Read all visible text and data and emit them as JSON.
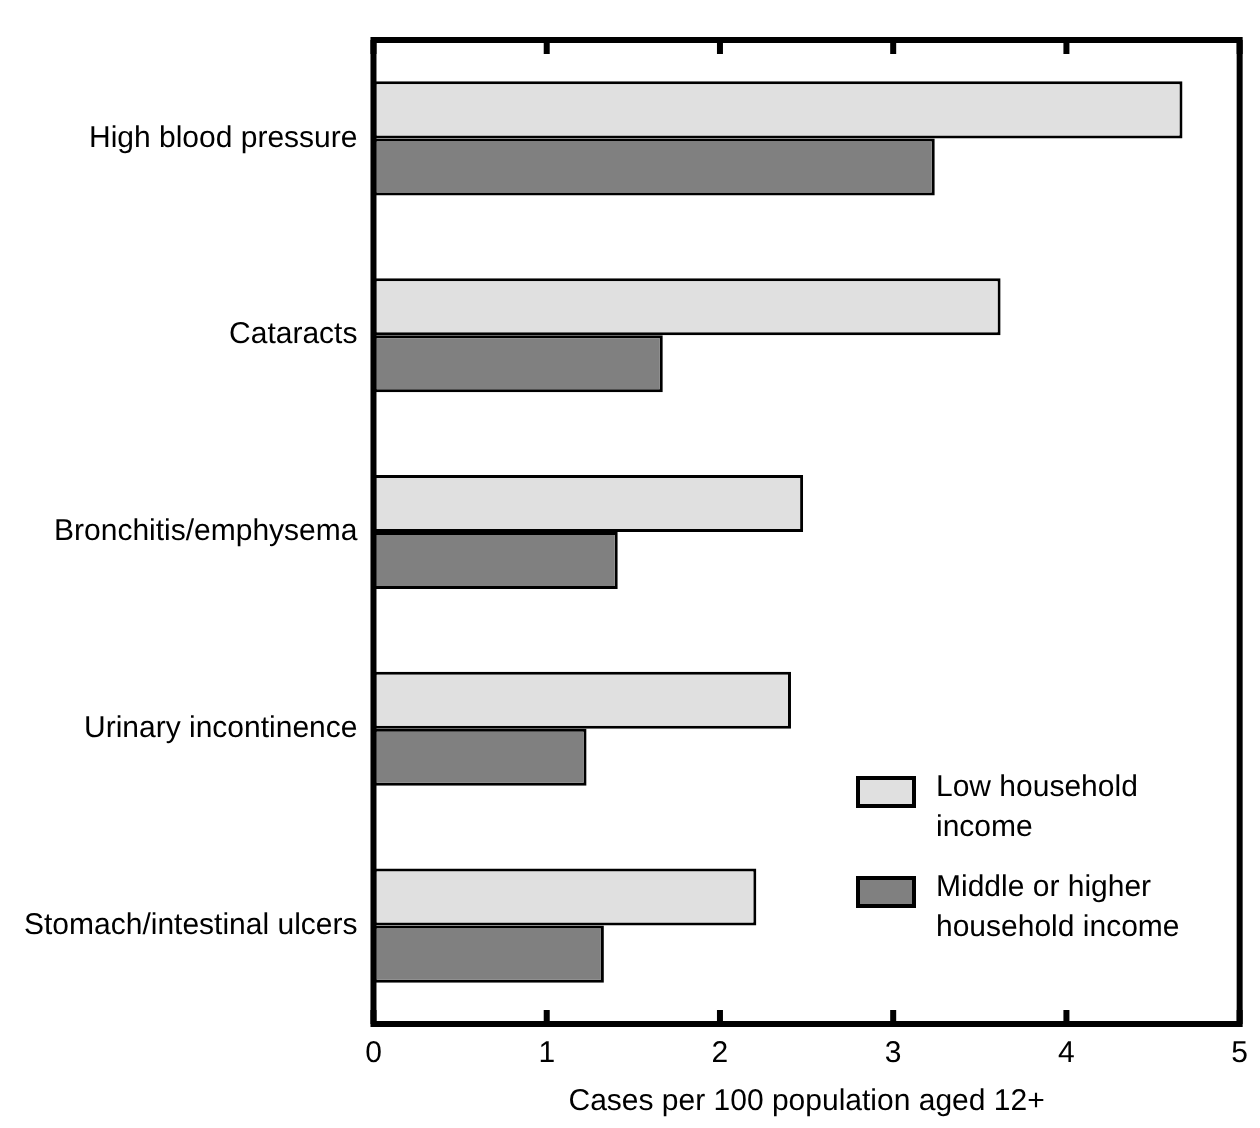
{
  "chart_data": {
    "type": "bar",
    "orientation": "horizontal",
    "categories": [
      "High blood pressure",
      "Cataracts",
      "Bronchitis/emphysema",
      "Urinary incontinence",
      "Stomach/intestinal ulcers"
    ],
    "series": [
      {
        "name": "Low household income",
        "color": "#e0e0e0",
        "values": [
          4.67,
          3.62,
          2.48,
          2.41,
          2.21
        ]
      },
      {
        "name": "Middle or higher household income",
        "color": "#808080",
        "values": [
          3.24,
          1.67,
          1.41,
          1.23,
          1.33
        ]
      }
    ],
    "xlabel": "Cases per 100 population aged 12+",
    "xlim": [
      0,
      5
    ],
    "xticks": [
      0,
      1,
      2,
      3,
      4,
      5
    ],
    "grid": false,
    "legend": "bottom right"
  }
}
